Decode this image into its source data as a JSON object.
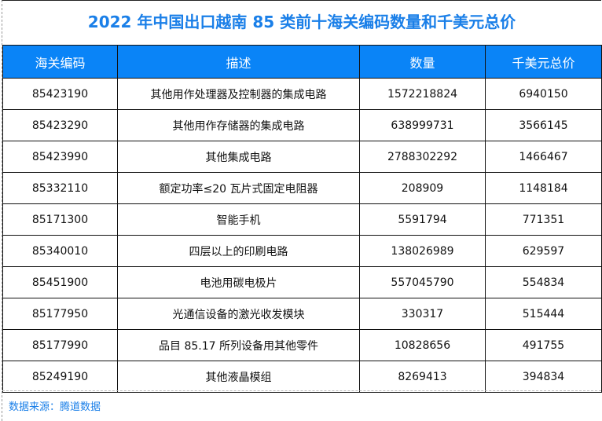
{
  "title": "2022 年中国出口越南 85 类前十海关编码数量和千美元总价",
  "colors": {
    "header_bg": "#0a84f7",
    "title": "#1a7fe8"
  },
  "table": {
    "headers": [
      "海关编码",
      "描述",
      "数量",
      "千美元总价"
    ],
    "rows": [
      [
        "85423190",
        "其他用作处理器及控制器的集成电路",
        "1572218824",
        "6940150"
      ],
      [
        "85423290",
        "其他用作存储器的集成电路",
        "638999731",
        "3566145"
      ],
      [
        "85423990",
        "其他集成电路",
        "2788302292",
        "1466467"
      ],
      [
        "85332110",
        "额定功率≤20 瓦片式固定电阻器",
        "208909",
        "1148184"
      ],
      [
        "85171300",
        "智能手机",
        "5591794",
        "771351"
      ],
      [
        "85340010",
        "四层以上的印刷电路",
        "138026989",
        "629597"
      ],
      [
        "85451900",
        "电池用碳电极片",
        "557045790",
        "554834"
      ],
      [
        "85177950",
        "光通信设备的激光收发模块",
        "330317",
        "515444"
      ],
      [
        "85177990",
        "品目 85.17 所列设备用其他零件",
        "10828656",
        "491755"
      ],
      [
        "85249190",
        "其他液晶模组",
        "8269413",
        "394834"
      ]
    ]
  },
  "footer": "数据来源：腾道数据"
}
